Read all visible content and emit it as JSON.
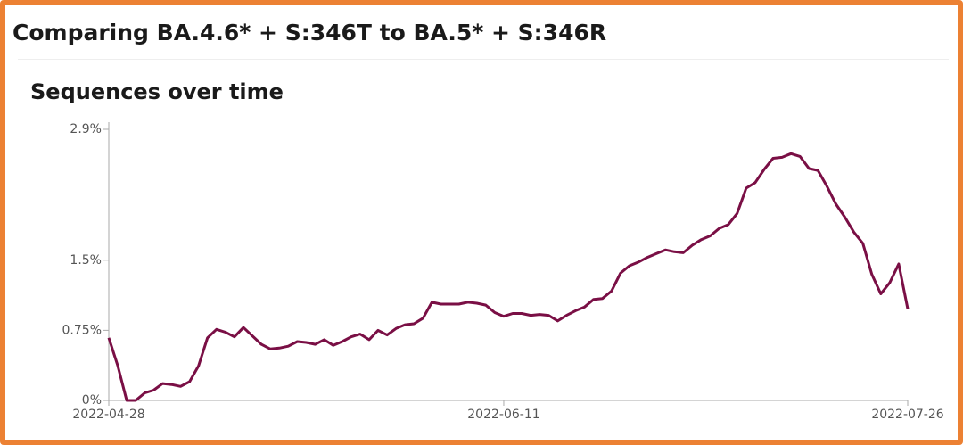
{
  "header": {
    "title": "Comparing BA.4.6* + S:346T to BA.5* + S:346R"
  },
  "chart_data": {
    "type": "line",
    "title": "Sequences over time",
    "x": [
      "2022-04-28",
      "2022-04-29",
      "2022-04-30",
      "2022-05-01",
      "2022-05-02",
      "2022-05-03",
      "2022-05-04",
      "2022-05-05",
      "2022-05-06",
      "2022-05-07",
      "2022-05-08",
      "2022-05-09",
      "2022-05-10",
      "2022-05-11",
      "2022-05-12",
      "2022-05-13",
      "2022-05-14",
      "2022-05-15",
      "2022-05-16",
      "2022-05-17",
      "2022-05-18",
      "2022-05-19",
      "2022-05-20",
      "2022-05-21",
      "2022-05-22",
      "2022-05-23",
      "2022-05-24",
      "2022-05-25",
      "2022-05-26",
      "2022-05-27",
      "2022-05-28",
      "2022-05-29",
      "2022-05-30",
      "2022-05-31",
      "2022-06-01",
      "2022-06-02",
      "2022-06-03",
      "2022-06-04",
      "2022-06-05",
      "2022-06-06",
      "2022-06-07",
      "2022-06-08",
      "2022-06-09",
      "2022-06-10",
      "2022-06-11",
      "2022-06-12",
      "2022-06-13",
      "2022-06-14",
      "2022-06-15",
      "2022-06-16",
      "2022-06-17",
      "2022-06-18",
      "2022-06-19",
      "2022-06-20",
      "2022-06-21",
      "2022-06-22",
      "2022-06-23",
      "2022-06-24",
      "2022-06-25",
      "2022-06-26",
      "2022-06-27",
      "2022-06-28",
      "2022-06-29",
      "2022-06-30",
      "2022-07-01",
      "2022-07-02",
      "2022-07-03",
      "2022-07-04",
      "2022-07-05",
      "2022-07-06",
      "2022-07-07",
      "2022-07-08",
      "2022-07-09",
      "2022-07-10",
      "2022-07-11",
      "2022-07-12",
      "2022-07-13",
      "2022-07-14",
      "2022-07-15",
      "2022-07-16",
      "2022-07-17",
      "2022-07-18",
      "2022-07-19",
      "2022-07-20",
      "2022-07-21",
      "2022-07-22",
      "2022-07-23",
      "2022-07-24",
      "2022-07-25",
      "2022-07-26"
    ],
    "series": [
      {
        "color": "#7a0f45",
        "values": [
          0.67,
          0.37,
          0,
          0,
          0.08,
          0.11,
          0.18,
          0.17,
          0.15,
          0.2,
          0.37,
          0.67,
          0.76,
          0.73,
          0.68,
          0.78,
          0.69,
          0.6,
          0.55,
          0.56,
          0.58,
          0.63,
          0.62,
          0.6,
          0.65,
          0.59,
          0.63,
          0.68,
          0.71,
          0.65,
          0.75,
          0.7,
          0.77,
          0.81,
          0.82,
          0.88,
          1.05,
          1.03,
          1.03,
          1.03,
          1.05,
          1.04,
          1.02,
          0.94,
          0.9,
          0.93,
          0.93,
          0.91,
          0.92,
          0.91,
          0.85,
          0.91,
          0.96,
          1.0,
          1.08,
          1.09,
          1.17,
          1.36,
          1.44,
          1.48,
          1.53,
          1.57,
          1.61,
          1.59,
          1.58,
          1.66,
          1.72,
          1.76,
          1.84,
          1.88,
          2.0,
          2.27,
          2.33,
          2.47,
          2.59,
          2.6,
          2.64,
          2.61,
          2.48,
          2.46,
          2.29,
          2.1,
          1.96,
          1.8,
          1.68,
          1.35,
          1.14,
          1.26,
          1.46,
          0.98
        ]
      }
    ],
    "xlim": [
      "2022-04-28",
      "2022-07-26"
    ],
    "xticks": [
      "2022-04-28",
      "2022-06-11",
      "2022-07-26"
    ],
    "ylim": [
      0,
      2.9
    ],
    "yticks": [
      {
        "value": 0,
        "label": "0%"
      },
      {
        "value": 0.75,
        "label": "0.75%"
      },
      {
        "value": 1.5,
        "label": "1.5%"
      },
      {
        "value": 2.9,
        "label": "2.9%"
      }
    ],
    "grid": false
  }
}
